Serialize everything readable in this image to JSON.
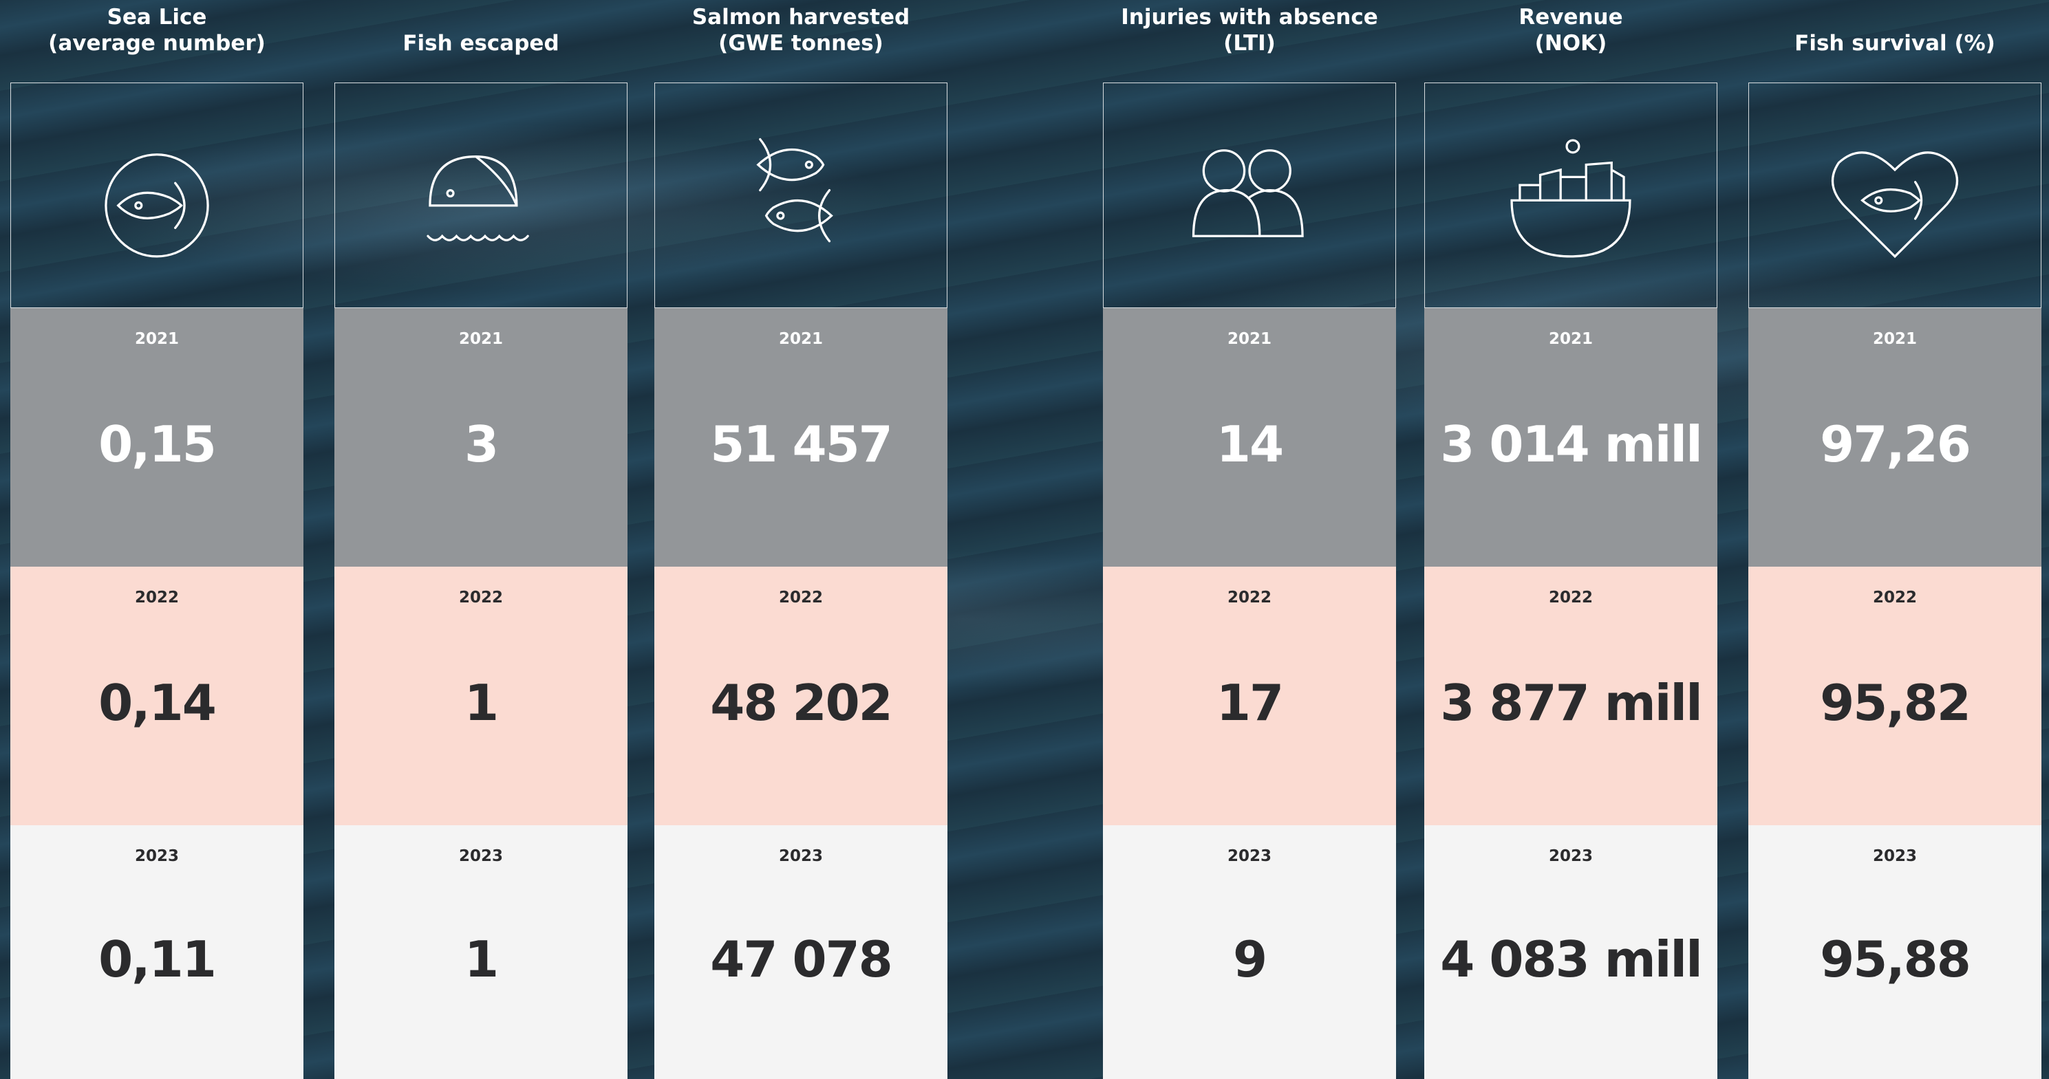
{
  "columns": [
    {
      "title": [
        "Sea Lice",
        "(average number)"
      ],
      "rows": [
        {
          "year": "2021",
          "value": "0,15"
        },
        {
          "year": "2022",
          "value": "0,14"
        },
        {
          "year": "2023",
          "value": "0,11"
        }
      ]
    },
    {
      "title": [
        "Fish escaped"
      ],
      "rows": [
        {
          "year": "2021",
          "value": "3"
        },
        {
          "year": "2022",
          "value": "1"
        },
        {
          "year": "2023",
          "value": "1"
        }
      ]
    },
    {
      "title": [
        "Salmon harvested",
        "(GWE tonnes)"
      ],
      "rows": [
        {
          "year": "2021",
          "value": "51 457"
        },
        {
          "year": "2022",
          "value": "48 202"
        },
        {
          "year": "2023",
          "value": "47 078"
        }
      ]
    },
    {
      "title": [
        "Injuries with absence",
        "(LTI)"
      ],
      "rows": [
        {
          "year": "2021",
          "value": "14"
        },
        {
          "year": "2022",
          "value": "17"
        },
        {
          "year": "2023",
          "value": "9"
        }
      ]
    },
    {
      "title": [
        "Revenue",
        "(NOK)"
      ],
      "rows": [
        {
          "year": "2021",
          "value": "3 014 mill"
        },
        {
          "year": "2022",
          "value": "3 877 mill"
        },
        {
          "year": "2023",
          "value": "4 083 mill"
        }
      ]
    },
    {
      "title": [
        "Fish survival (%)"
      ],
      "rows": [
        {
          "year": "2021",
          "value": "97,26"
        },
        {
          "year": "2022",
          "value": "95,82"
        },
        {
          "year": "2023",
          "value": "95,88"
        }
      ]
    }
  ]
}
